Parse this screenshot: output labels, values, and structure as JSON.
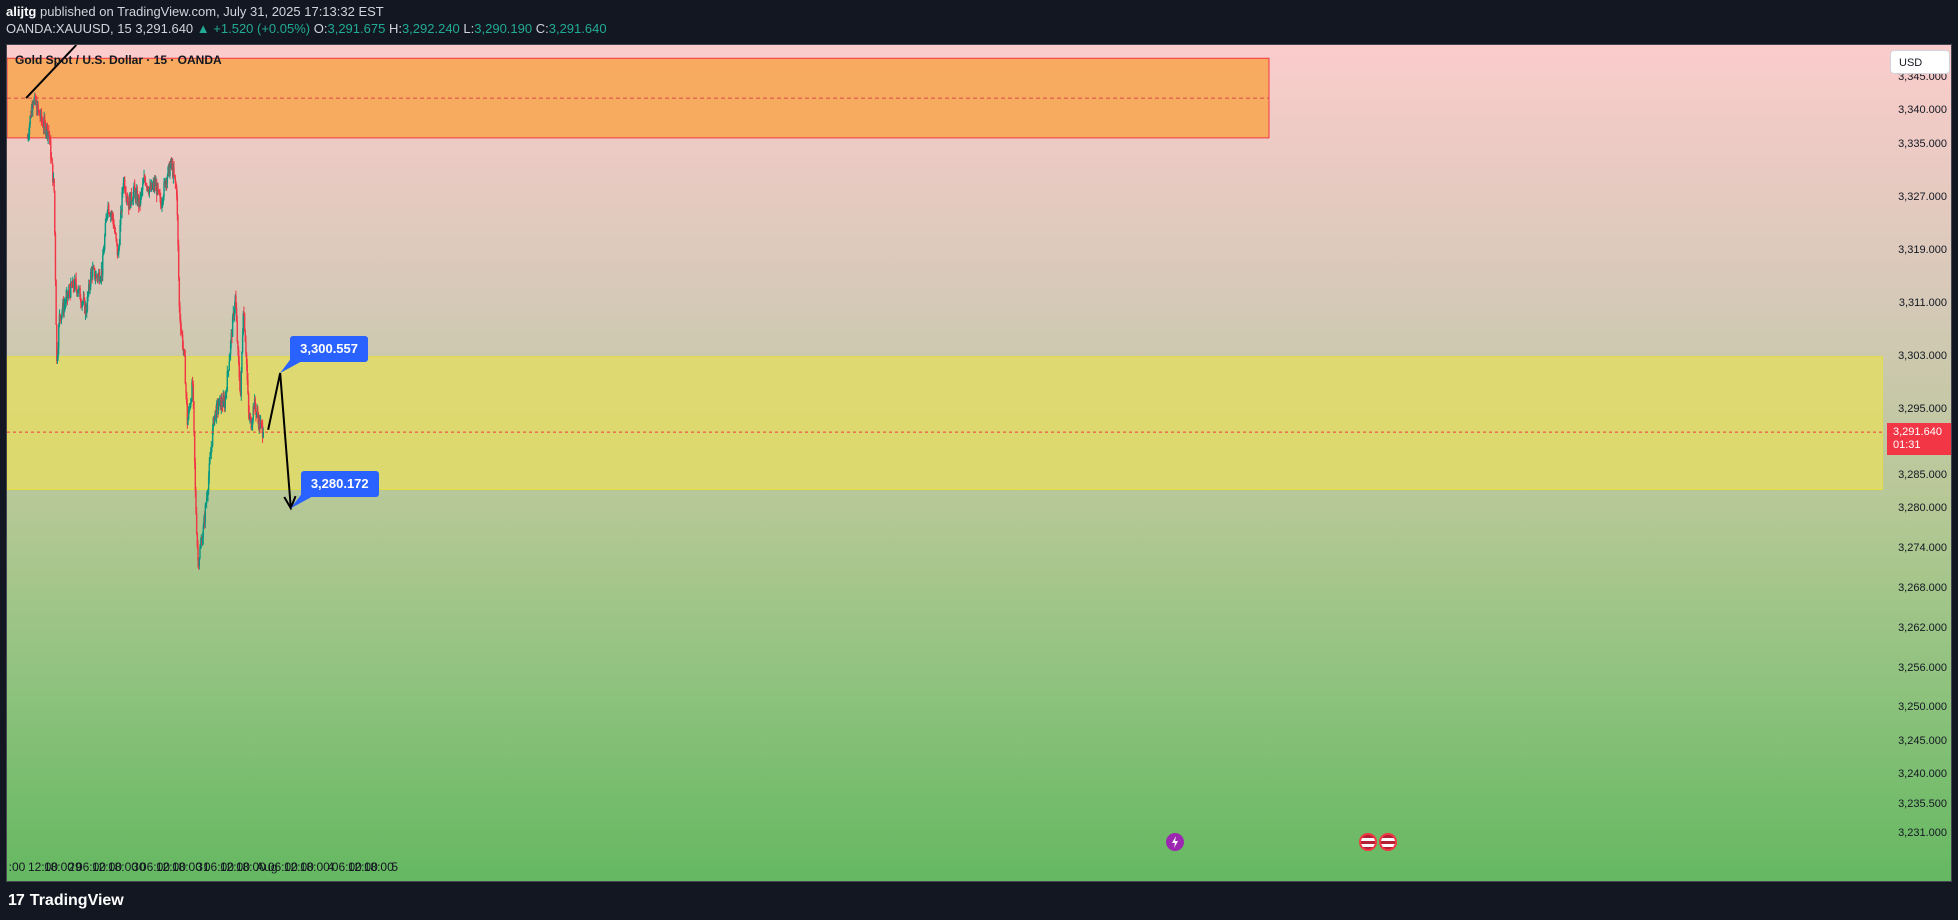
{
  "header": {
    "author": "alijtg",
    "published_text": "published on TradingView.com, July 31, 2025 17:13:32 EST",
    "symbol": "OANDA:XAUUSD, 15",
    "last": "3,291.640",
    "change": "▲ +1.520 (+0.05%)",
    "o_label": "O:",
    "o_value": "3,291.675",
    "h_label": "H:",
    "h_value": "3,292.240",
    "l_label": "L:",
    "l_value": "3,290.190",
    "c_label": "C:",
    "c_value": "3,291.640"
  },
  "chart_title": "Gold Spot / U.S. Dollar · 15 · OANDA",
  "currency_label": "USD",
  "last_price_tag": {
    "price": "3,291.640",
    "countdown": "01:31"
  },
  "callouts": {
    "upper": "3,300.557",
    "lower": "3,280.172"
  },
  "footer": {
    "brand": "TradingView"
  },
  "colors": {
    "up": "#089981",
    "down": "#f23645",
    "supply_zone": "#f7a651",
    "demand_zone": "#e2dc66",
    "callout": "#2962ff",
    "drawing": "#000000"
  },
  "chart_data": {
    "type": "candlestick",
    "title": "Gold Spot / U.S. Dollar · 15 · OANDA",
    "y_axis": {
      "range": [
        3228.5,
        3350.0
      ],
      "ticks": [
        "3,345.000",
        "3,340.000",
        "3,335.000",
        "3,327.000",
        "3,319.000",
        "3,311.000",
        "3,303.000",
        "3,295.000",
        "3,285.000",
        "3,280.000",
        "3,274.000",
        "3,268.000",
        "3,262.000",
        "3,256.000",
        "3,250.000",
        "3,245.000",
        "3,240.000",
        "3,235.500",
        "3,231.000"
      ]
    },
    "x_axis": {
      "ticks": [
        ":00",
        "12:00",
        "18:00",
        "29",
        "06:00",
        "12:00",
        "18:00",
        "30",
        "06:00",
        "12:00",
        "18:00",
        "31",
        "06:00",
        "12:00",
        "18:00",
        "Aug",
        "06:00",
        "12:00",
        "18:00",
        "4",
        "06:00",
        "12:00",
        "18:00",
        "5"
      ]
    },
    "price_path": [
      {
        "t": "Jul 28 06:00",
        "price": 3336
      },
      {
        "t": "Jul 28 08:00",
        "price": 3342
      },
      {
        "t": "Jul 28 12:00",
        "price": 3338
      },
      {
        "t": "Jul 28 14:00",
        "price": 3337
      },
      {
        "t": "Jul 28 16:00",
        "price": 3328
      },
      {
        "t": "Jul 28 17:00",
        "price": 3302
      },
      {
        "t": "Jul 28 18:00",
        "price": 3309
      },
      {
        "t": "Jul 28 20:00",
        "price": 3311
      },
      {
        "t": "Jul 28 22:00",
        "price": 3313
      },
      {
        "t": "Jul 29 00:00",
        "price": 3314
      },
      {
        "t": "Jul 29 02:00",
        "price": 3312
      },
      {
        "t": "Jul 29 04:00",
        "price": 3310
      },
      {
        "t": "Jul 29 06:00",
        "price": 3316
      },
      {
        "t": "Jul 29 08:00",
        "price": 3315
      },
      {
        "t": "Jul 29 10:00",
        "price": 3316
      },
      {
        "t": "Jul 29 12:00",
        "price": 3326
      },
      {
        "t": "Jul 29 14:00",
        "price": 3324
      },
      {
        "t": "Jul 29 16:00",
        "price": 3318
      },
      {
        "t": "Jul 29 18:00",
        "price": 3330
      },
      {
        "t": "Jul 29 20:00",
        "price": 3326
      },
      {
        "t": "Jul 29 22:00",
        "price": 3328
      },
      {
        "t": "Jul 30 00:00",
        "price": 3326
      },
      {
        "t": "Jul 30 02:00",
        "price": 3330
      },
      {
        "t": "Jul 30 04:00",
        "price": 3328
      },
      {
        "t": "Jul 30 06:00",
        "price": 3329
      },
      {
        "t": "Jul 30 08:00",
        "price": 3326
      },
      {
        "t": "Jul 30 10:00",
        "price": 3330
      },
      {
        "t": "Jul 30 12:00",
        "price": 3332
      },
      {
        "t": "Jul 30 14:00",
        "price": 3328
      },
      {
        "t": "Jul 30 15:00",
        "price": 3310
      },
      {
        "t": "Jul 30 17:00",
        "price": 3302
      },
      {
        "t": "Jul 30 18:00",
        "price": 3293
      },
      {
        "t": "Jul 30 20:00",
        "price": 3299
      },
      {
        "t": "Jul 30 21:00",
        "price": 3282
      },
      {
        "t": "Jul 30 22:00",
        "price": 3272
      },
      {
        "t": "Jul 31 00:00",
        "price": 3277
      },
      {
        "t": "Jul 31 02:00",
        "price": 3285
      },
      {
        "t": "Jul 31 04:00",
        "price": 3294
      },
      {
        "t": "Jul 31 06:00",
        "price": 3296
      },
      {
        "t": "Jul 31 08:00",
        "price": 3296
      },
      {
        "t": "Jul 31 10:00",
        "price": 3304
      },
      {
        "t": "Jul 31 12:00",
        "price": 3312
      },
      {
        "t": "Jul 31 13:00",
        "price": 3303
      },
      {
        "t": "Jul 31 14:00",
        "price": 3297
      },
      {
        "t": "Jul 31 15:00",
        "price": 3311
      },
      {
        "t": "Jul 31 16:00",
        "price": 3304
      },
      {
        "t": "Jul 31 17:00",
        "price": 3294
      },
      {
        "t": "Jul 31 18:00",
        "price": 3293
      },
      {
        "t": "Jul 31 19:00",
        "price": 3296
      },
      {
        "t": "Jul 31 21:00",
        "price": 3293
      },
      {
        "t": "Jul 31 22:30",
        "price": 3291.64
      }
    ],
    "last_price": 3291.64,
    "zones": [
      {
        "name": "supply zone",
        "from": 3336,
        "to": 3348
      },
      {
        "name": "demand zone",
        "from": 3283,
        "to": 3303
      }
    ],
    "projection": [
      {
        "t": "Aug 1 00:30",
        "price": 3292
      },
      {
        "t": "Aug 1 05:00",
        "price": 3300.557
      },
      {
        "t": "Aug 1 09:00",
        "price": 3280.172
      }
    ],
    "trendline": [
      {
        "t": "Jul 28 05:40",
        "price": 3342
      },
      {
        "t": "Jul 29 00:30",
        "price": 3350
      }
    ],
    "grid": false
  }
}
